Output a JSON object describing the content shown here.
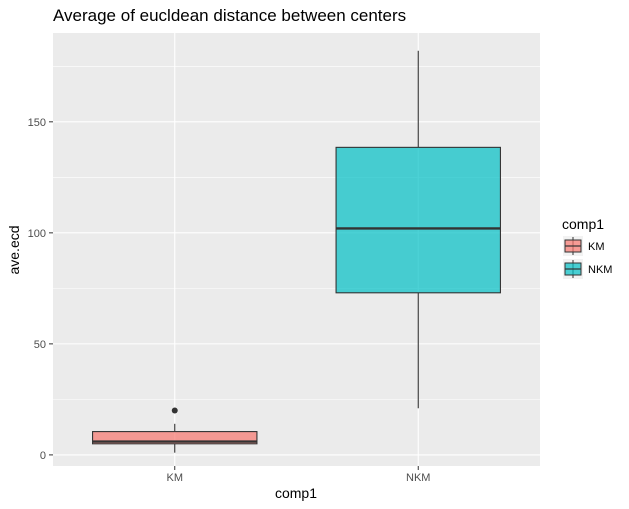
{
  "chart_data": {
    "type": "boxplot",
    "title": "Average of eucldean distance between centers",
    "xlabel": "comp1",
    "ylabel": "ave.ecd",
    "categories": [
      "KM",
      "NKM"
    ],
    "ylim": [
      -5,
      190
    ],
    "yticks": [
      0,
      50,
      100,
      150
    ],
    "grid": true,
    "legend": {
      "title": "comp1",
      "position": "right",
      "entries": [
        {
          "label": "KM",
          "color": "#f8766d"
        },
        {
          "label": "NKM",
          "color": "#00bfc4"
        }
      ]
    },
    "series": [
      {
        "category": "KM",
        "whisker_low": 1,
        "q1": 5,
        "median": 6,
        "q3": 10.5,
        "whisker_high": 14,
        "outliers": [
          20
        ],
        "color": "#f8766d"
      },
      {
        "category": "NKM",
        "whisker_low": 21,
        "q1": 73,
        "median": 102,
        "q3": 138.5,
        "whisker_high": 182,
        "outliers": [],
        "color": "#00bfc4"
      }
    ]
  }
}
